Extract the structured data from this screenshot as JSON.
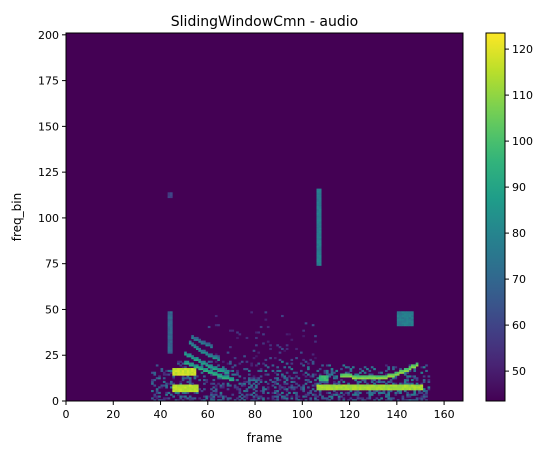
{
  "chart_data": {
    "type": "heatmap",
    "title": "SlidingWindowCmn - audio",
    "xlabel": "frame",
    "ylabel": "freq_bin",
    "xlim": [
      0,
      168
    ],
    "ylim": [
      0,
      201
    ],
    "x_ticks": [
      0,
      20,
      40,
      60,
      80,
      100,
      120,
      140,
      160
    ],
    "y_ticks": [
      0,
      25,
      50,
      75,
      100,
      125,
      150,
      175,
      200
    ],
    "colormap": "viridis",
    "color_range": [
      43.5,
      123.5
    ],
    "colorbar_ticks": [
      50,
      60,
      70,
      80,
      90,
      100,
      110,
      120
    ],
    "grid": false,
    "background_value": 44,
    "features": [
      {
        "kind": "band",
        "x_start": 45,
        "x_end": 55,
        "y_start": 5,
        "y_end": 8,
        "value": 118
      },
      {
        "kind": "band",
        "x_start": 45,
        "x_end": 54,
        "y_start": 14,
        "y_end": 17,
        "value": 120
      },
      {
        "kind": "curve",
        "points": [
          [
            50,
            20
          ],
          [
            56,
            17
          ],
          [
            62,
            14
          ],
          [
            66,
            12
          ],
          [
            70,
            11
          ]
        ],
        "value": 96
      },
      {
        "kind": "curve",
        "points": [
          [
            50,
            25
          ],
          [
            56,
            21
          ],
          [
            60,
            18
          ],
          [
            64,
            16
          ],
          [
            68,
            15
          ]
        ],
        "value": 92
      },
      {
        "kind": "curve",
        "points": [
          [
            52,
            31
          ],
          [
            56,
            27
          ],
          [
            60,
            24
          ],
          [
            64,
            22
          ]
        ],
        "value": 86
      },
      {
        "kind": "curve",
        "points": [
          [
            53,
            34
          ],
          [
            57,
            31
          ],
          [
            61,
            29
          ]
        ],
        "value": 80
      },
      {
        "kind": "band",
        "x_start": 106,
        "x_end": 150,
        "y_start": 6,
        "y_end": 8,
        "value": 115
      },
      {
        "kind": "curve",
        "points": [
          [
            116,
            13
          ],
          [
            125,
            12
          ],
          [
            134,
            12
          ],
          [
            140,
            14
          ],
          [
            145,
            17
          ],
          [
            148,
            19
          ]
        ],
        "value": 112
      },
      {
        "kind": "band",
        "x_start": 107,
        "x_end": 110,
        "y_start": 11,
        "y_end": 13,
        "value": 100
      },
      {
        "kind": "band",
        "x_start": 43,
        "x_end": 44,
        "y_start": 26,
        "y_end": 48,
        "value": 72
      },
      {
        "kind": "band",
        "x_start": 106,
        "x_end": 107,
        "y_start": 74,
        "y_end": 115,
        "value": 80
      },
      {
        "kind": "band",
        "x_start": 43,
        "x_end": 44,
        "y_start": 111,
        "y_end": 113,
        "value": 62
      },
      {
        "kind": "band",
        "x_start": 140,
        "x_end": 146,
        "y_start": 41,
        "y_end": 48,
        "value": 80
      },
      {
        "kind": "noise",
        "x_start": 36,
        "x_end": 106,
        "y_start": 0,
        "y_end": 22,
        "density": 0.45,
        "value_min": 50,
        "value_max": 78
      },
      {
        "kind": "noise",
        "x_start": 106,
        "x_end": 154,
        "y_start": 0,
        "y_end": 20,
        "density": 0.5,
        "value_min": 52,
        "value_max": 80
      },
      {
        "kind": "noise",
        "x_start": 60,
        "x_end": 106,
        "y_start": 22,
        "y_end": 50,
        "density": 0.06,
        "value_min": 48,
        "value_max": 64
      }
    ]
  }
}
